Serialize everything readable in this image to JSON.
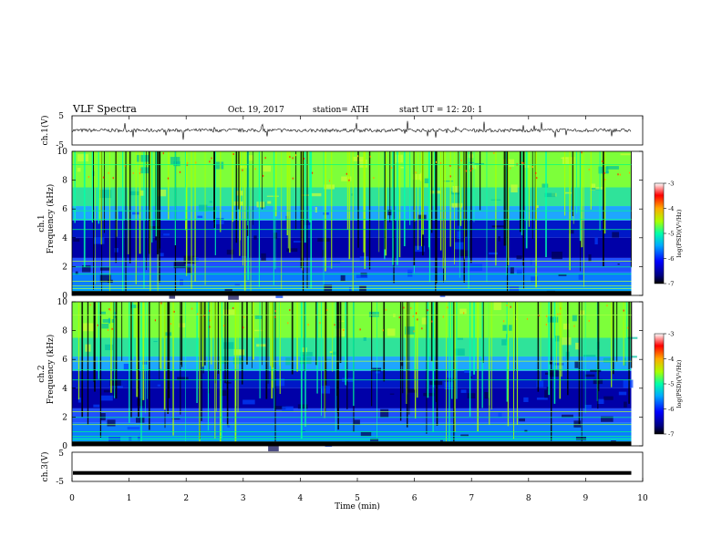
{
  "header": {
    "title": "VLF  Spectra",
    "date": "Oct. 19, 2017",
    "station": "station= ATH",
    "start_time": "start  UT  =    12: 20: 1"
  },
  "chart_data": [
    {
      "type": "line",
      "panel": "ch1-timeseries",
      "ylabel": "ch.1(V)",
      "yticks": [
        "5",
        "-5"
      ],
      "ylim": [
        -5,
        5
      ],
      "xlim": [
        0,
        10
      ],
      "baseline_value": 0
    },
    {
      "type": "heatmap",
      "panel": "ch1-spectrogram",
      "ylabel_channel": "ch.1",
      "ylabel": "Frequency  (kHz)",
      "yticks": [
        "0",
        "2",
        "4",
        "6",
        "8",
        "10"
      ],
      "ylim": [
        0,
        10
      ],
      "xlim": [
        0,
        9.8
      ],
      "colorbar": {
        "label": "log(PSD)(V²/Hz)",
        "ticks": [
          "-3",
          "-4",
          "-5",
          "-6",
          "-7"
        ],
        "range": [
          -7,
          -3
        ],
        "colors": [
          "#000080",
          "#0000ff",
          "#00aaff",
          "#00ffaa",
          "#aaff00",
          "#ffaa00",
          "#ff0000",
          "#ffffff"
        ]
      }
    },
    {
      "type": "heatmap",
      "panel": "ch2-spectrogram",
      "ylabel_channel": "ch.2",
      "ylabel": "Frequency  (kHz)",
      "yticks": [
        "0",
        "2",
        "4",
        "6",
        "8",
        "10"
      ],
      "ylim": [
        0,
        10
      ],
      "xlim": [
        0,
        9.8
      ],
      "colorbar": {
        "label": "log(PSD)(V²/Hz)",
        "ticks": [
          "-3",
          "-4",
          "-5",
          "-6",
          "-7"
        ],
        "range": [
          -7,
          -3
        ],
        "colors": [
          "#000080",
          "#0000ff",
          "#00aaff",
          "#00ffaa",
          "#aaff00",
          "#ffaa00",
          "#ff0000",
          "#ffffff"
        ]
      }
    },
    {
      "type": "line",
      "panel": "ch3-timeseries",
      "ylabel": "ch.3(V)",
      "yticks": [
        "5",
        "-5"
      ],
      "ylim": [
        -5,
        5
      ],
      "xlim": [
        0,
        10
      ],
      "constant_value": -2.1
    }
  ],
  "xaxis": {
    "label": "Time  (min)",
    "ticks": [
      "0",
      "1",
      "2",
      "3",
      "4",
      "5",
      "6",
      "7",
      "8",
      "9",
      "10"
    ],
    "range": [
      0,
      10
    ]
  }
}
